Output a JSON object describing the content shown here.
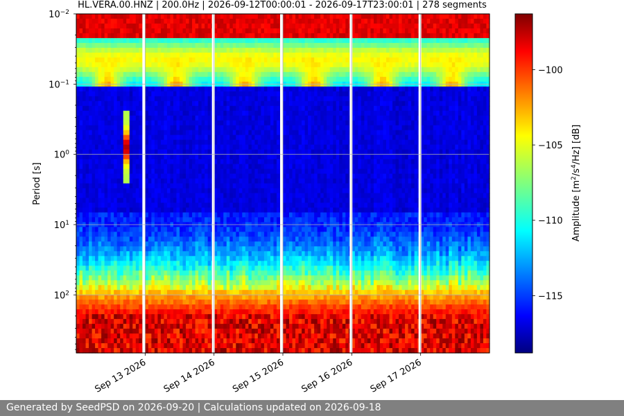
{
  "chart_data": {
    "type": "heatmap",
    "title": "HL.VERA.00.HNZ | 200.0Hz | 2026-09-12T00:00:01 - 2026-09-17T23:00:01 | 278 segments",
    "ylabel": "Period [s]",
    "y_scale": "log",
    "y_inverted": true,
    "ylim_seconds": [
      0.01,
      670
    ],
    "y_tick_values": [
      0.01,
      0.1,
      1,
      10,
      100
    ],
    "y_ticks": [
      {
        "base": "10",
        "exp": "−2"
      },
      {
        "base": "10",
        "exp": "−1"
      },
      {
        "base": "10",
        "exp": "0"
      },
      {
        "base": "10",
        "exp": "1"
      },
      {
        "base": "10",
        "exp": "2"
      }
    ],
    "x_range_days": [
      0,
      6
    ],
    "x_tick_days": [
      1,
      2,
      3,
      4,
      5
    ],
    "x_ticks": [
      "Sep 13 2026",
      "Sep 14 2026",
      "Sep 15 2026",
      "Sep 16 2026",
      "Sep 17 2026"
    ],
    "data_gaps_day": [
      0.98,
      1.99,
      2.98,
      3.99,
      4.99
    ],
    "colorbar": {
      "label_prefix": "Amplitude [m",
      "label_sup1": "2",
      "label_mid": "/s",
      "label_sup2": "4",
      "label_suffix": "/Hz] [dB]",
      "colormap": "jet",
      "range_db": [
        -118.8,
        -96.3
      ],
      "ticks": [
        -115,
        -110,
        -105,
        -100
      ],
      "tick_labels": [
        "−115",
        "−110",
        "−105",
        "−100"
      ]
    },
    "grid": true
  },
  "footer": {
    "text": "Generated by SeedPSD on 2026-09-20 | Calculations updated on 2026-09-18"
  }
}
